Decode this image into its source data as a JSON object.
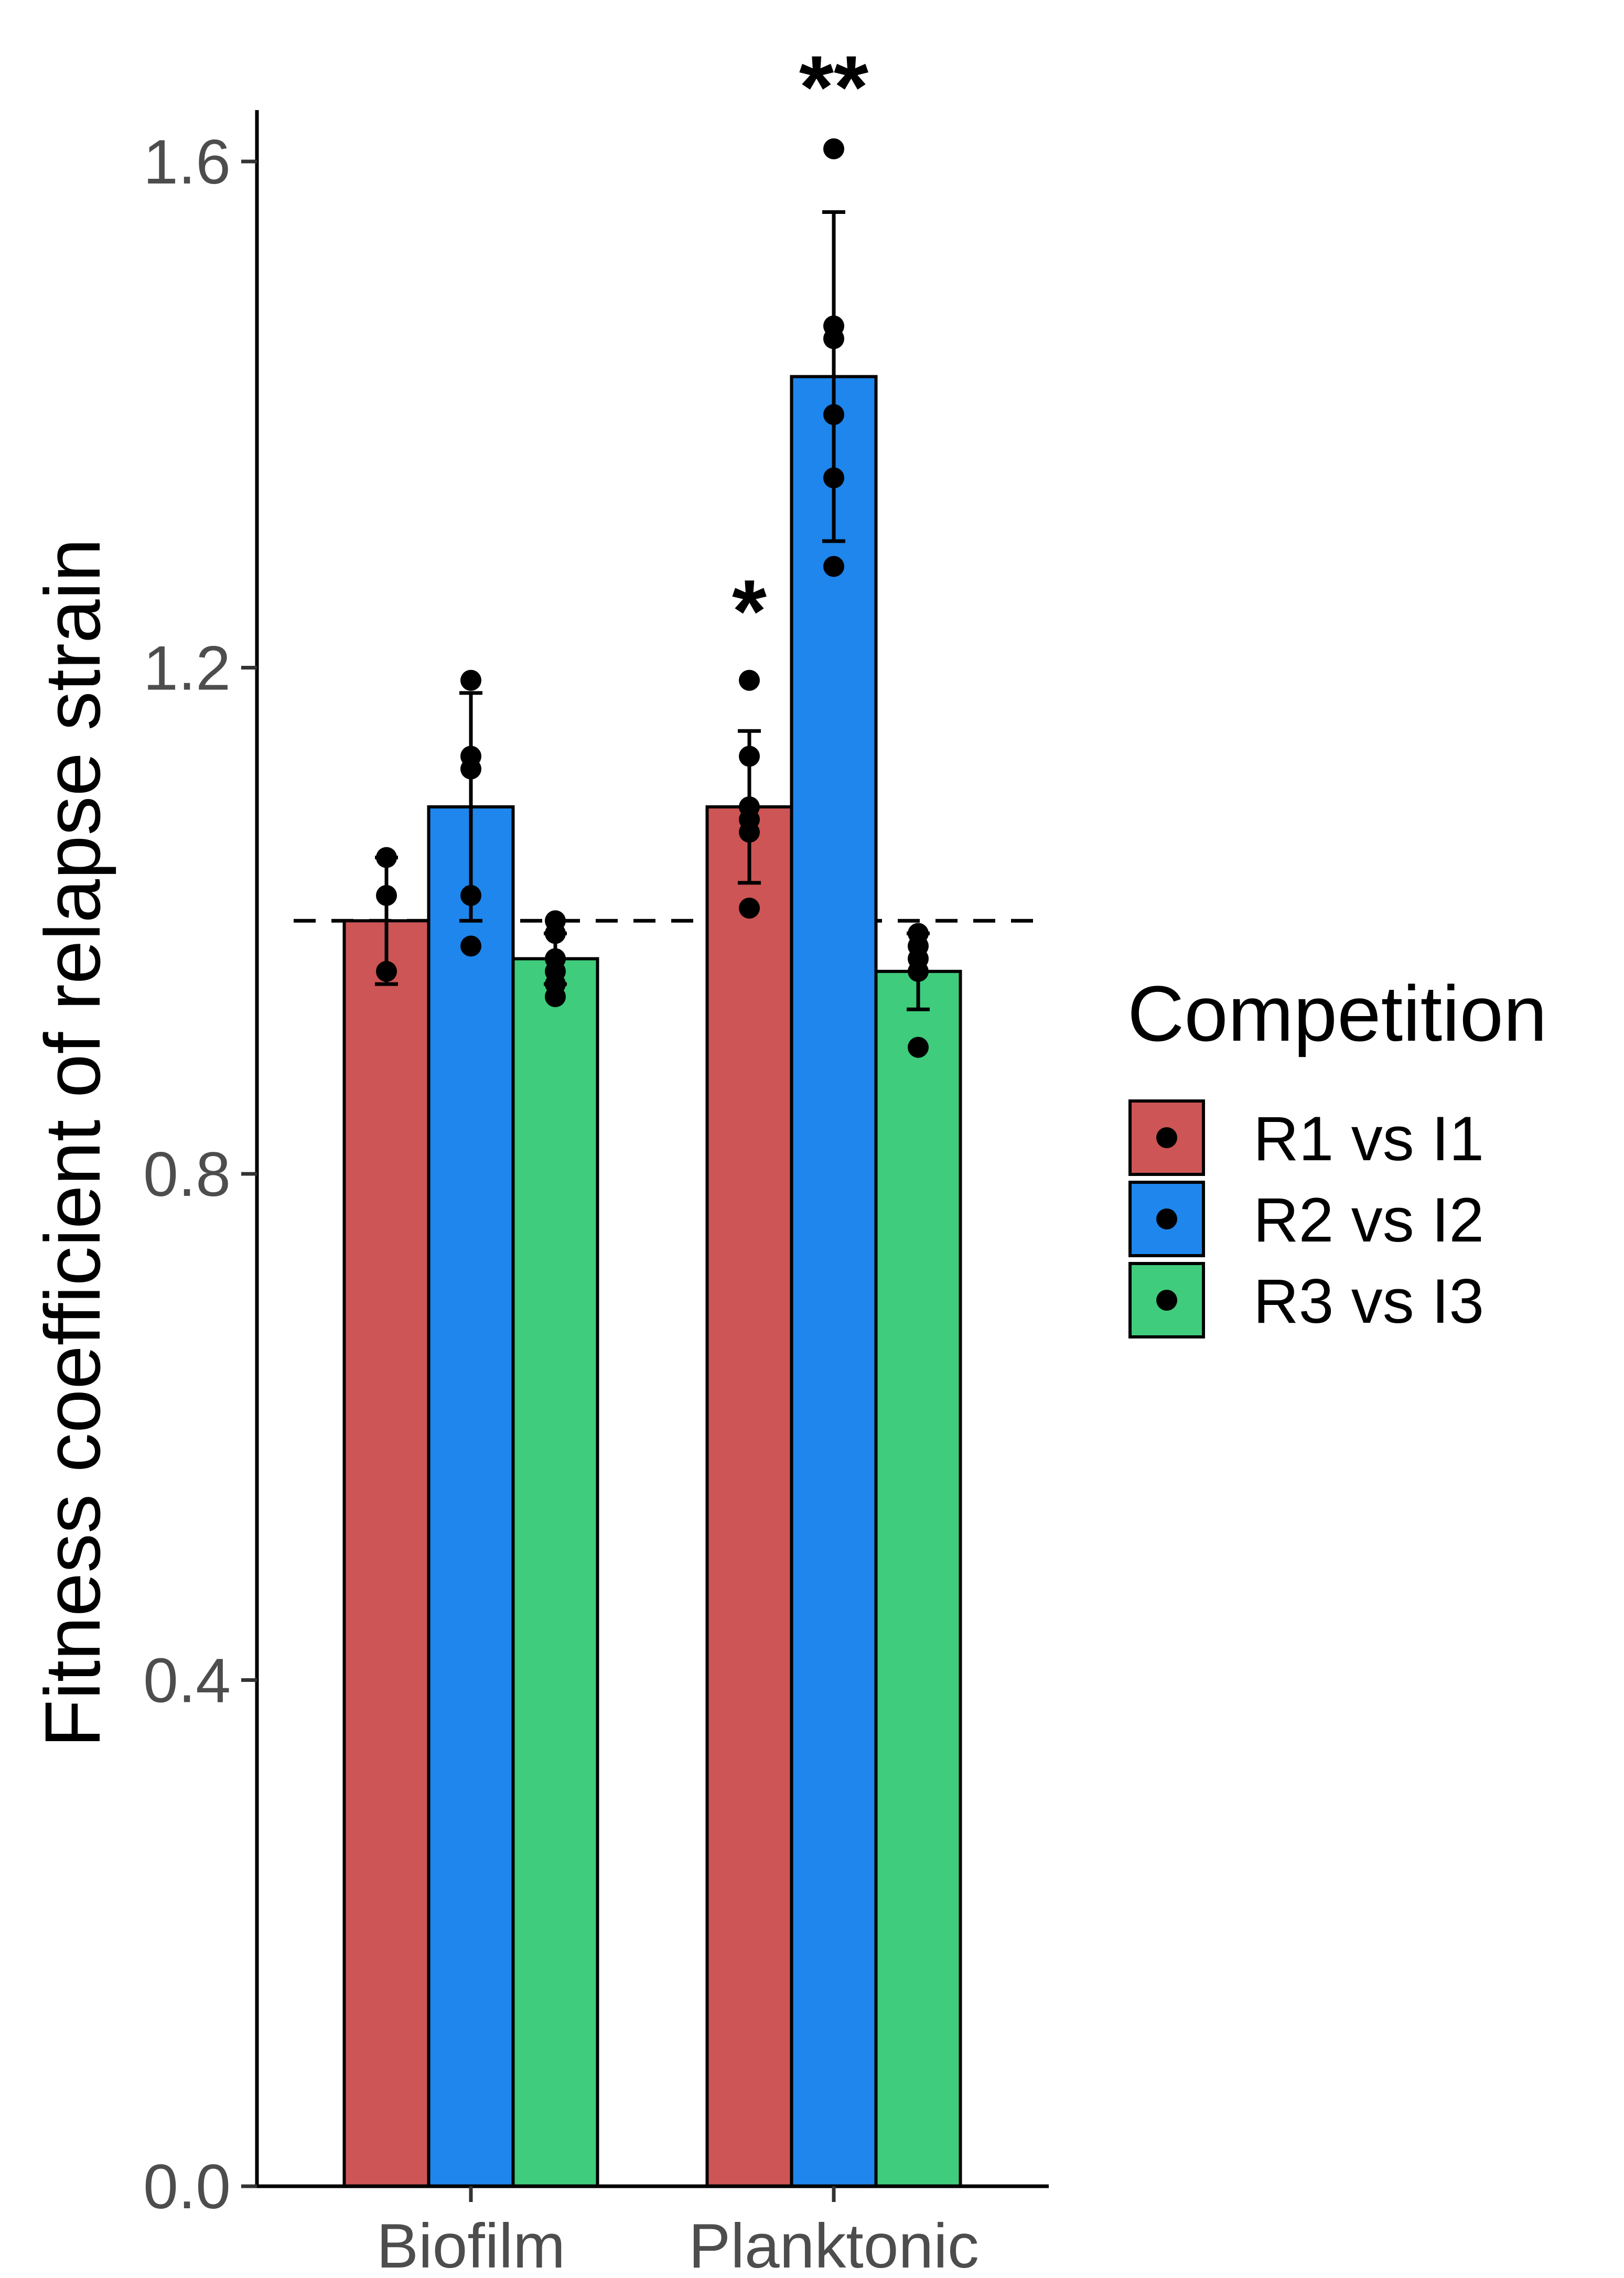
{
  "chart_data": {
    "type": "bar",
    "categories": [
      "Biofilm",
      "Planktonic"
    ],
    "ylabel": "Fitness coefficient of relapse strain",
    "xlabel": "",
    "ylim": [
      0,
      1.64
    ],
    "yticks": [
      0.0,
      0.4,
      0.8,
      1.2,
      1.6
    ],
    "ytick_labels": [
      "0.0",
      "0.4",
      "0.8",
      "1.2",
      "1.6"
    ],
    "reference_line": 1.0,
    "legend": {
      "title": "Competition",
      "position": "right"
    },
    "series": [
      {
        "name": "R1 vs I1",
        "color": "#cd5555",
        "values": [
          1.0,
          1.09
        ],
        "error_low": [
          0.95,
          1.03
        ],
        "error_high": [
          1.05,
          1.15
        ],
        "points": [
          [
            1.05,
            1.02,
            0.96
          ],
          [
            1.19,
            1.13,
            1.09,
            1.08,
            1.07,
            1.01
          ]
        ],
        "significance": [
          "",
          "*"
        ]
      },
      {
        "name": "R2 vs I2",
        "color": "#1e86ec",
        "values": [
          1.09,
          1.43
        ],
        "error_low": [
          1.0,
          1.3
        ],
        "error_high": [
          1.18,
          1.56
        ],
        "points": [
          [
            1.19,
            1.13,
            1.12,
            1.02,
            0.98
          ],
          [
            1.61,
            1.47,
            1.46,
            1.4,
            1.35,
            1.28
          ]
        ],
        "significance": [
          "",
          "**"
        ]
      },
      {
        "name": "R3 vs I3",
        "color": "#3fcc7c",
        "values": [
          0.97,
          0.96
        ],
        "error_low": [
          0.95,
          0.93
        ],
        "error_high": [
          0.99,
          0.99
        ],
        "points": [
          [
            1.0,
            0.99,
            0.97,
            0.96,
            0.95,
            0.94
          ],
          [
            0.99,
            0.98,
            0.97,
            0.96,
            0.9
          ]
        ],
        "significance": [
          "",
          ""
        ]
      }
    ]
  }
}
